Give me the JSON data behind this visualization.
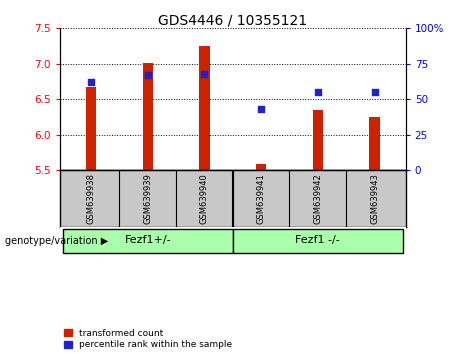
{
  "title": "GDS4446 / 10355121",
  "samples": [
    "GSM639938",
    "GSM639939",
    "GSM639940",
    "GSM639941",
    "GSM639942",
    "GSM639943"
  ],
  "transformed_counts": [
    6.67,
    7.01,
    7.25,
    5.58,
    6.35,
    6.25
  ],
  "percentile_ranks": [
    62,
    67,
    68,
    43,
    55,
    55
  ],
  "ylim_left": [
    5.5,
    7.5
  ],
  "ylim_right": [
    0,
    100
  ],
  "yticks_left": [
    5.5,
    6.0,
    6.5,
    7.0,
    7.5
  ],
  "yticks_right": [
    0,
    25,
    50,
    75,
    100
  ],
  "ytick_labels_right": [
    "0",
    "25",
    "50",
    "75",
    "100%"
  ],
  "bar_color": "#cc2200",
  "dot_color": "#2222cc",
  "bar_width": 0.18,
  "groups": [
    {
      "label": "Fezf1+/-",
      "indices": [
        0,
        1,
        2
      ],
      "color": "#aaffaa"
    },
    {
      "label": "Fezf1 -/-",
      "indices": [
        3,
        4,
        5
      ],
      "color": "#aaffaa"
    }
  ],
  "group_label": "genotype/variation",
  "legend_items": [
    {
      "label": "transformed count",
      "color": "#cc2200"
    },
    {
      "label": "percentile rank within the sample",
      "color": "#2222cc"
    }
  ],
  "bg_color": "#ffffff",
  "sample_box_color": "#c8c8c8",
  "title_fontsize": 10
}
